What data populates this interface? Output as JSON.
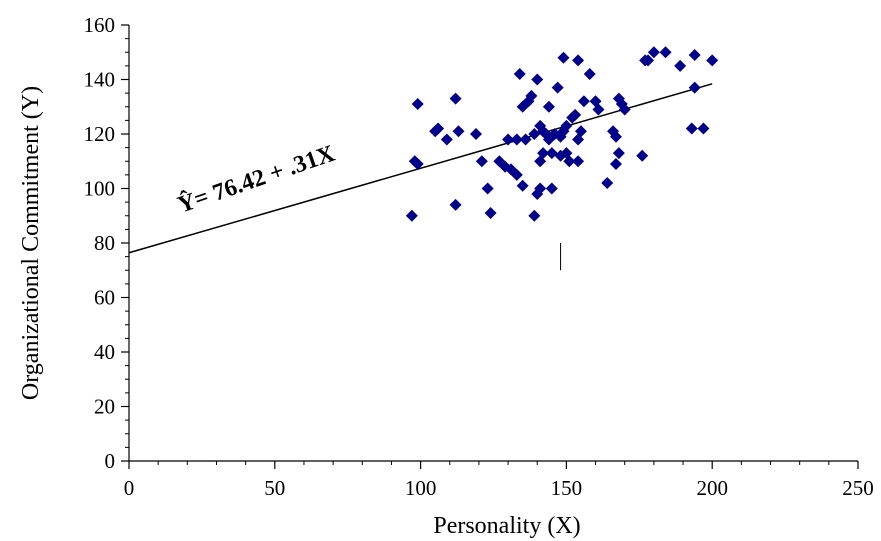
{
  "chart_data": {
    "type": "scatter",
    "xlabel": "Personality (X)",
    "ylabel": "Organizational Commitment (Y)",
    "xlim": [
      0,
      250
    ],
    "ylim": [
      0,
      160
    ],
    "xticks": [
      0,
      50,
      100,
      150,
      200,
      250
    ],
    "yticks": [
      0,
      20,
      40,
      60,
      80,
      100,
      120,
      140,
      160
    ],
    "grid": false,
    "marker": "diamond",
    "marker_color": "#00008B",
    "regression": {
      "intercept": 76.42,
      "slope": 0.31,
      "x_range": [
        0,
        200
      ],
      "label": "Ŷ= 76.42 + .31X"
    },
    "points": [
      [
        97,
        90
      ],
      [
        98,
        110
      ],
      [
        99,
        109
      ],
      [
        99,
        131
      ],
      [
        105,
        121
      ],
      [
        106,
        122
      ],
      [
        109,
        118
      ],
      [
        112,
        133
      ],
      [
        112,
        94
      ],
      [
        113,
        121
      ],
      [
        119,
        120
      ],
      [
        121,
        110
      ],
      [
        123,
        100
      ],
      [
        124,
        91
      ],
      [
        127,
        110
      ],
      [
        129,
        108
      ],
      [
        130,
        118
      ],
      [
        131,
        107
      ],
      [
        133,
        118
      ],
      [
        133,
        105
      ],
      [
        134,
        142
      ],
      [
        135,
        101
      ],
      [
        135,
        130
      ],
      [
        136,
        118
      ],
      [
        137,
        132
      ],
      [
        138,
        134
      ],
      [
        139,
        90
      ],
      [
        139,
        120
      ],
      [
        140,
        140
      ],
      [
        140,
        98
      ],
      [
        141,
        110
      ],
      [
        141,
        100
      ],
      [
        141,
        123
      ],
      [
        142,
        113
      ],
      [
        142,
        121
      ],
      [
        143,
        120
      ],
      [
        144,
        118
      ],
      [
        144,
        130
      ],
      [
        145,
        100
      ],
      [
        145,
        113
      ],
      [
        146,
        120
      ],
      [
        147,
        137
      ],
      [
        148,
        112
      ],
      [
        148,
        119
      ],
      [
        149,
        148
      ],
      [
        149,
        121
      ],
      [
        150,
        113
      ],
      [
        150,
        123
      ],
      [
        151,
        110
      ],
      [
        152,
        126
      ],
      [
        153,
        127
      ],
      [
        154,
        147
      ],
      [
        154,
        118
      ],
      [
        154,
        110
      ],
      [
        155,
        121
      ],
      [
        156,
        132
      ],
      [
        158,
        142
      ],
      [
        160,
        132
      ],
      [
        161,
        129
      ],
      [
        164,
        102
      ],
      [
        166,
        121
      ],
      [
        167,
        119
      ],
      [
        167,
        109
      ],
      [
        168,
        133
      ],
      [
        168,
        113
      ],
      [
        169,
        131
      ],
      [
        170,
        129
      ],
      [
        176,
        112
      ],
      [
        177,
        147
      ],
      [
        178,
        147
      ],
      [
        180,
        150
      ],
      [
        184,
        150
      ],
      [
        189,
        145
      ],
      [
        193,
        122
      ],
      [
        194,
        149
      ],
      [
        194,
        137
      ],
      [
        197,
        122
      ],
      [
        200,
        147
      ]
    ],
    "annotations": []
  }
}
